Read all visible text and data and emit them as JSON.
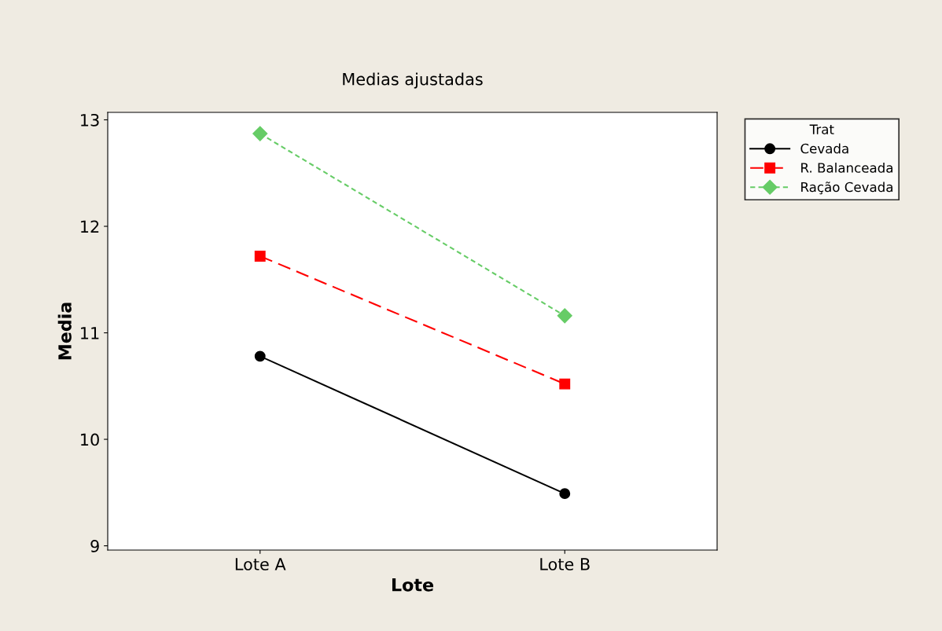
{
  "chart_data": {
    "type": "line",
    "title": "Medias ajustadas",
    "xlabel": "Lote",
    "ylabel": "Media",
    "legend_title": "Trat",
    "legend": "top right",
    "categories": [
      "Lote A",
      "Lote B"
    ],
    "ylim": [
      8.96,
      13.07
    ],
    "yticks": [
      9,
      10,
      11,
      12,
      13
    ],
    "grid": false,
    "series": [
      {
        "name": "Cevada",
        "color": "#000000",
        "values": [
          10.78,
          9.49
        ],
        "marker": "circle",
        "line_style": "solid"
      },
      {
        "name": "R. Balanceada",
        "color": "#ff0000",
        "values": [
          11.72,
          10.52
        ],
        "marker": "square",
        "line_style": "dashed"
      },
      {
        "name": "Ração Cevada",
        "color": "#66cc66",
        "values": [
          12.87,
          11.16
        ],
        "marker": "diamond",
        "line_style": "dotted"
      }
    ]
  }
}
